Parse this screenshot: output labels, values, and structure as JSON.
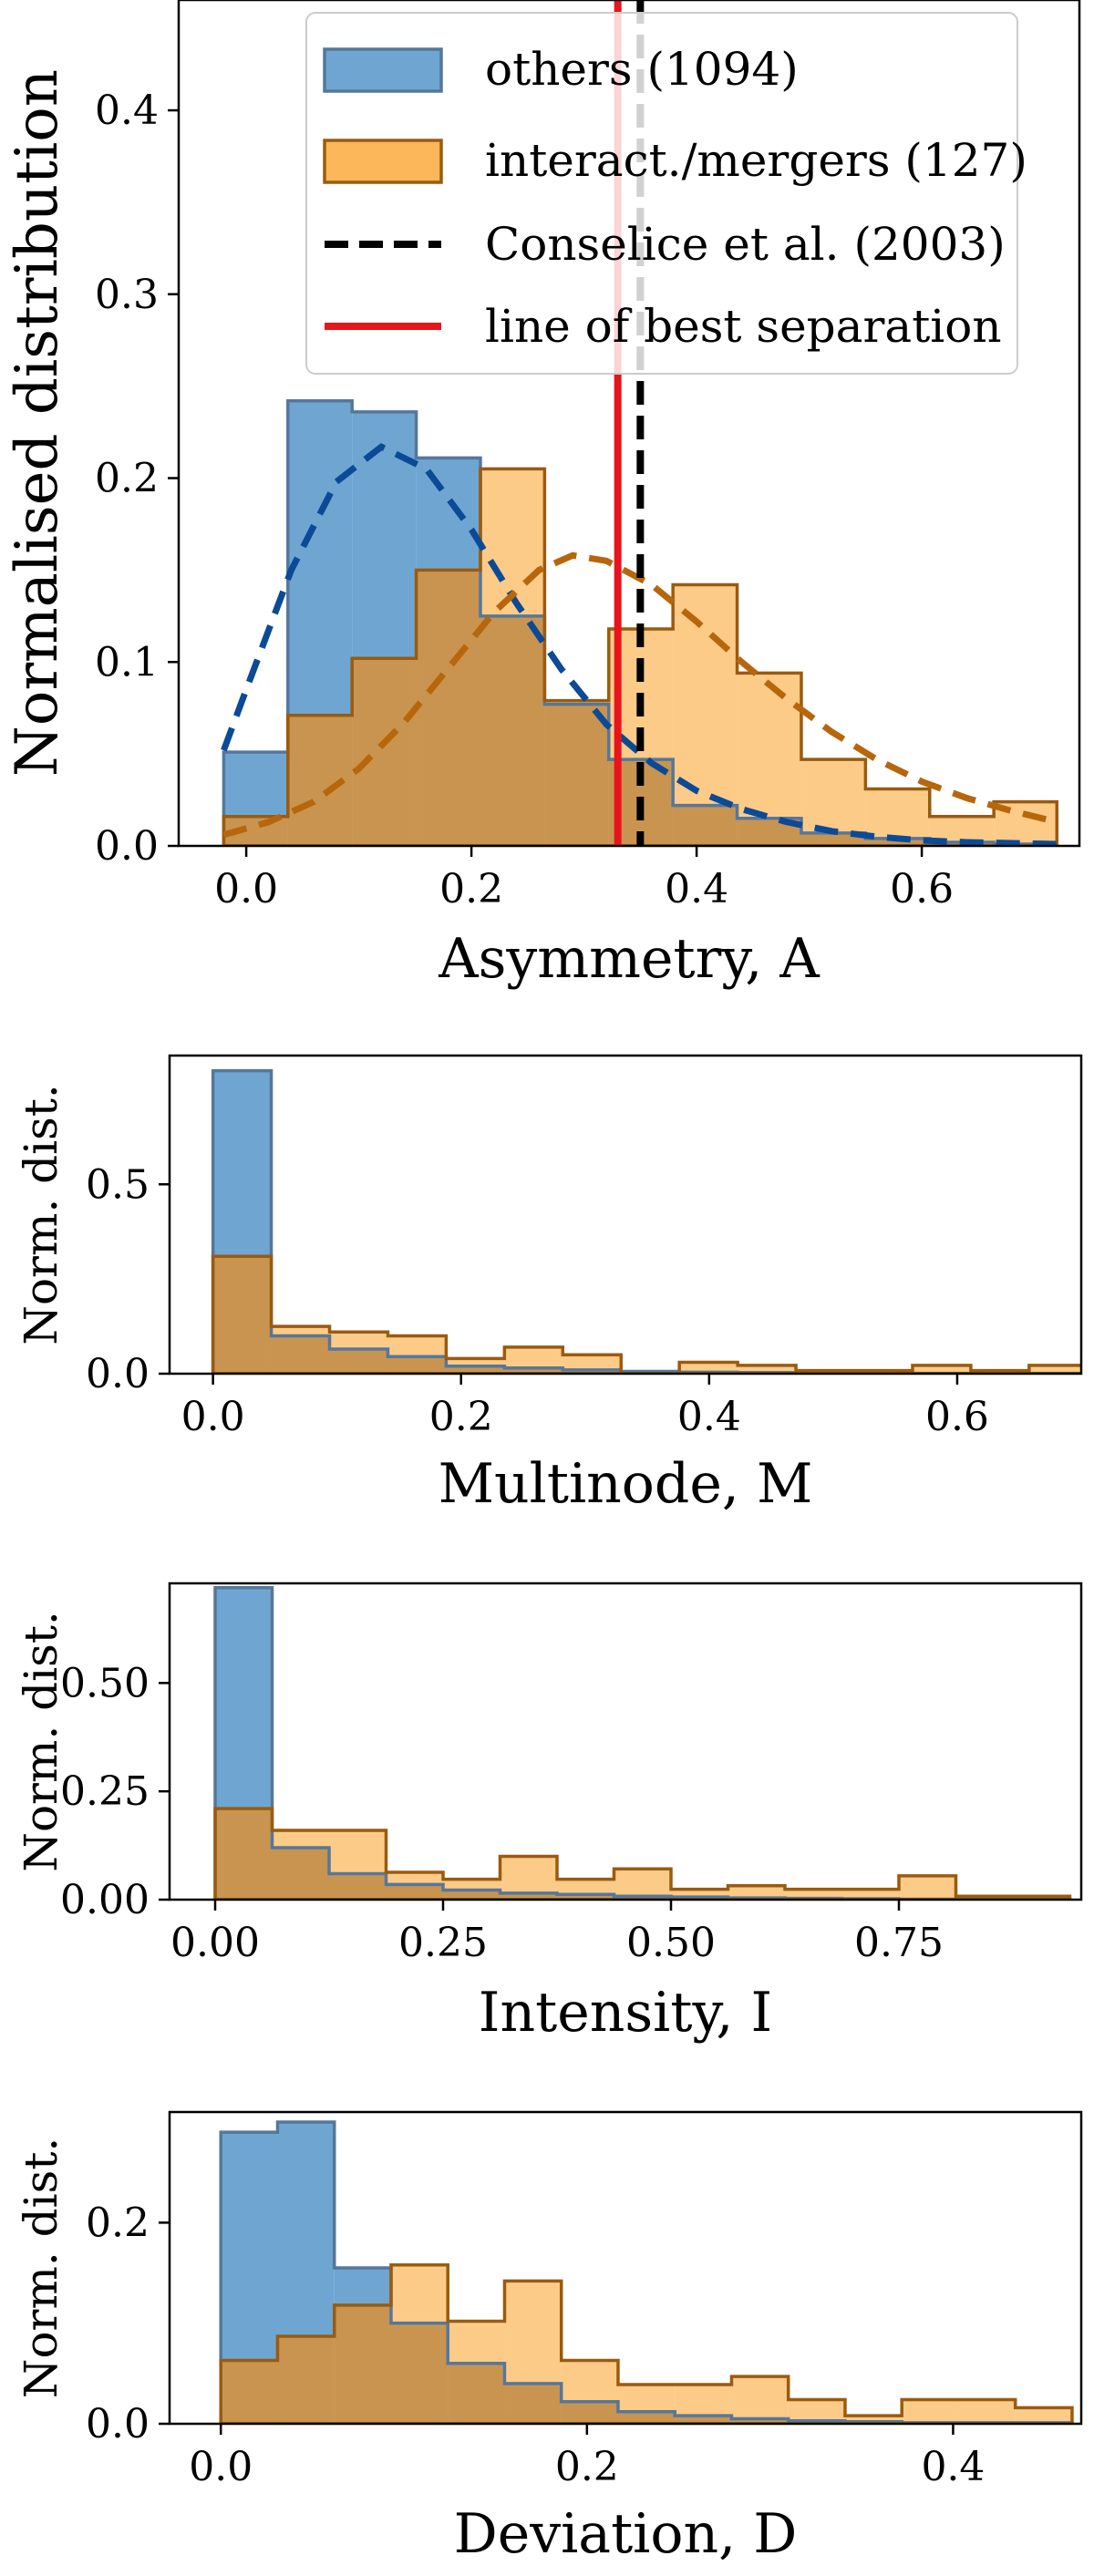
{
  "colors": {
    "others_fill": "#6ea6d1",
    "others_edge": "#55779b",
    "mergers_fill": "#fcb75a",
    "mergers_edge": "#9a5b0e",
    "overlap_fill": "#c99450",
    "others_fit": "#0b4a97",
    "mergers_fit": "#b8660b",
    "conselice_line": "#000000",
    "best_line": "#e8141c"
  },
  "chart_data": [
    {
      "type": "histogram",
      "name": "asymmetry",
      "xlabel": "Asymmetry, A",
      "ylabel": "Normalised distribution",
      "xlim": [
        -0.06,
        0.74
      ],
      "ylim": [
        0,
        0.46
      ],
      "xticks": [
        0.0,
        0.2,
        0.4,
        0.6
      ],
      "xtick_labels": [
        "0.0",
        "0.2",
        "0.4",
        "0.6"
      ],
      "yticks": [
        0.0,
        0.1,
        0.2,
        0.3,
        0.4
      ],
      "ytick_labels": [
        "0.0",
        "0.1",
        "0.2",
        "0.3",
        "0.4"
      ],
      "bin_edges": [
        -0.02,
        0.037,
        0.094,
        0.151,
        0.208,
        0.265,
        0.322,
        0.379,
        0.436,
        0.493,
        0.55,
        0.607,
        0.664,
        0.72
      ],
      "series": [
        {
          "name": "others",
          "count": 1094,
          "values": [
            0.051,
            0.242,
            0.236,
            0.211,
            0.125,
            0.077,
            0.047,
            0.022,
            0.015,
            0.007,
            0.004,
            0.002,
            0.001
          ]
        },
        {
          "name": "interact./mergers",
          "count": 127,
          "values": [
            0.016,
            0.071,
            0.102,
            0.15,
            0.205,
            0.079,
            0.118,
            0.142,
            0.094,
            0.047,
            0.031,
            0.016,
            0.024
          ]
        }
      ],
      "fits": [
        {
          "series": "others",
          "type": "lognormal-like",
          "peak_x": 0.13,
          "peak_y": 0.217,
          "samples": [
            [
              -0.02,
              0.052
            ],
            [
              0.0,
              0.085
            ],
            [
              0.04,
              0.15
            ],
            [
              0.08,
              0.198
            ],
            [
              0.12,
              0.217
            ],
            [
              0.16,
              0.205
            ],
            [
              0.2,
              0.172
            ],
            [
              0.24,
              0.132
            ],
            [
              0.28,
              0.096
            ],
            [
              0.32,
              0.066
            ],
            [
              0.36,
              0.045
            ],
            [
              0.4,
              0.03
            ],
            [
              0.44,
              0.02
            ],
            [
              0.48,
              0.013
            ],
            [
              0.52,
              0.008
            ],
            [
              0.56,
              0.005
            ],
            [
              0.6,
              0.003
            ],
            [
              0.64,
              0.002
            ],
            [
              0.72,
              0.001
            ]
          ]
        },
        {
          "series": "interact./mergers",
          "type": "lognormal-like",
          "peak_x": 0.29,
          "peak_y": 0.158,
          "samples": [
            [
              -0.02,
              0.006
            ],
            [
              0.02,
              0.013
            ],
            [
              0.06,
              0.024
            ],
            [
              0.1,
              0.042
            ],
            [
              0.14,
              0.067
            ],
            [
              0.18,
              0.097
            ],
            [
              0.22,
              0.127
            ],
            [
              0.26,
              0.15
            ],
            [
              0.29,
              0.158
            ],
            [
              0.32,
              0.155
            ],
            [
              0.36,
              0.142
            ],
            [
              0.4,
              0.122
            ],
            [
              0.44,
              0.1
            ],
            [
              0.48,
              0.08
            ],
            [
              0.52,
              0.062
            ],
            [
              0.56,
              0.047
            ],
            [
              0.6,
              0.035
            ],
            [
              0.64,
              0.026
            ],
            [
              0.68,
              0.019
            ],
            [
              0.72,
              0.013
            ]
          ]
        }
      ],
      "vlines": [
        {
          "name": "Conselice et al. (2003)",
          "x": 0.35,
          "style": "dashed"
        },
        {
          "name": "line of best separation",
          "x": 0.33,
          "style": "solid"
        }
      ],
      "legend": {
        "placement": "top-right",
        "entries": [
          "others (1094)",
          "interact./mergers (127)",
          "Conselice et al. (2003)",
          "line of best separation"
        ]
      }
    },
    {
      "type": "histogram",
      "name": "multinode",
      "xlabel": "Multinode, M",
      "ylabel": "Norm. dist.",
      "xlim": [
        -0.035,
        0.7
      ],
      "ylim": [
        0,
        0.84
      ],
      "xticks": [
        0.0,
        0.2,
        0.4,
        0.6
      ],
      "xtick_labels": [
        "0.0",
        "0.2",
        "0.4",
        "0.6"
      ],
      "yticks": [
        0.0,
        0.5
      ],
      "ytick_labels": [
        "0.0",
        "0.5"
      ],
      "bin_edges": [
        0.0,
        0.047,
        0.094,
        0.141,
        0.188,
        0.235,
        0.282,
        0.329,
        0.376,
        0.423,
        0.47,
        0.517,
        0.564,
        0.611,
        0.658,
        0.705
      ],
      "series": [
        {
          "name": "others",
          "values": [
            0.8,
            0.1,
            0.065,
            0.045,
            0.02,
            0.015,
            0.01,
            0.006,
            0.004,
            0.003,
            0.002,
            0.001,
            0.001,
            0.001,
            0.001
          ]
        },
        {
          "name": "interact./mergers",
          "values": [
            0.31,
            0.125,
            0.11,
            0.1,
            0.04,
            0.07,
            0.05,
            0.0,
            0.03,
            0.022,
            0.008,
            0.008,
            0.022,
            0.008,
            0.022
          ]
        }
      ]
    },
    {
      "type": "histogram",
      "name": "intensity",
      "xlabel": "Intensity, I",
      "ylabel": "Norm. dist.",
      "xlim": [
        -0.05,
        0.95
      ],
      "ylim": [
        0,
        0.73
      ],
      "xticks": [
        0.0,
        0.25,
        0.5,
        0.75
      ],
      "xtick_labels": [
        "0.00",
        "0.25",
        "0.50",
        "0.75"
      ],
      "yticks": [
        0.0,
        0.25,
        0.5
      ],
      "ytick_labels": [
        "0.00",
        "0.25",
        "0.50"
      ],
      "bin_edges": [
        0.0,
        0.0625,
        0.125,
        0.1875,
        0.25,
        0.3125,
        0.375,
        0.4375,
        0.5,
        0.5625,
        0.625,
        0.6875,
        0.75,
        0.8125,
        0.875,
        0.9375
      ],
      "series": [
        {
          "name": "others",
          "values": [
            0.72,
            0.12,
            0.06,
            0.035,
            0.022,
            0.015,
            0.012,
            0.008,
            0.006,
            0.004,
            0.003,
            0.002,
            0.001,
            0.001,
            0.001
          ]
        },
        {
          "name": "interact./mergers",
          "values": [
            0.21,
            0.16,
            0.16,
            0.063,
            0.047,
            0.1,
            0.047,
            0.071,
            0.024,
            0.032,
            0.024,
            0.024,
            0.055,
            0.008,
            0.008
          ]
        }
      ]
    },
    {
      "type": "histogram",
      "name": "deviation",
      "xlabel": "Deviation, D",
      "ylabel": "Norm. dist.",
      "xlim": [
        -0.028,
        0.47
      ],
      "ylim": [
        0,
        0.31
      ],
      "xticks": [
        0.0,
        0.2,
        0.4
      ],
      "xtick_labels": [
        "0.0",
        "0.2",
        "0.4"
      ],
      "yticks": [
        0.0,
        0.2
      ],
      "ytick_labels": [
        "0.0",
        "0.2"
      ],
      "bin_edges": [
        0.0,
        0.031,
        0.062,
        0.093,
        0.124,
        0.155,
        0.186,
        0.217,
        0.248,
        0.279,
        0.31,
        0.341,
        0.372,
        0.403,
        0.434,
        0.465
      ],
      "series": [
        {
          "name": "others",
          "values": [
            0.29,
            0.3,
            0.155,
            0.1,
            0.06,
            0.04,
            0.022,
            0.012,
            0.008,
            0.005,
            0.003,
            0.002,
            0.001,
            0.001,
            0.001
          ]
        },
        {
          "name": "interact./mergers",
          "values": [
            0.063,
            0.087,
            0.118,
            0.158,
            0.102,
            0.142,
            0.063,
            0.039,
            0.039,
            0.047,
            0.024,
            0.008,
            0.024,
            0.024,
            0.016
          ]
        }
      ]
    }
  ]
}
